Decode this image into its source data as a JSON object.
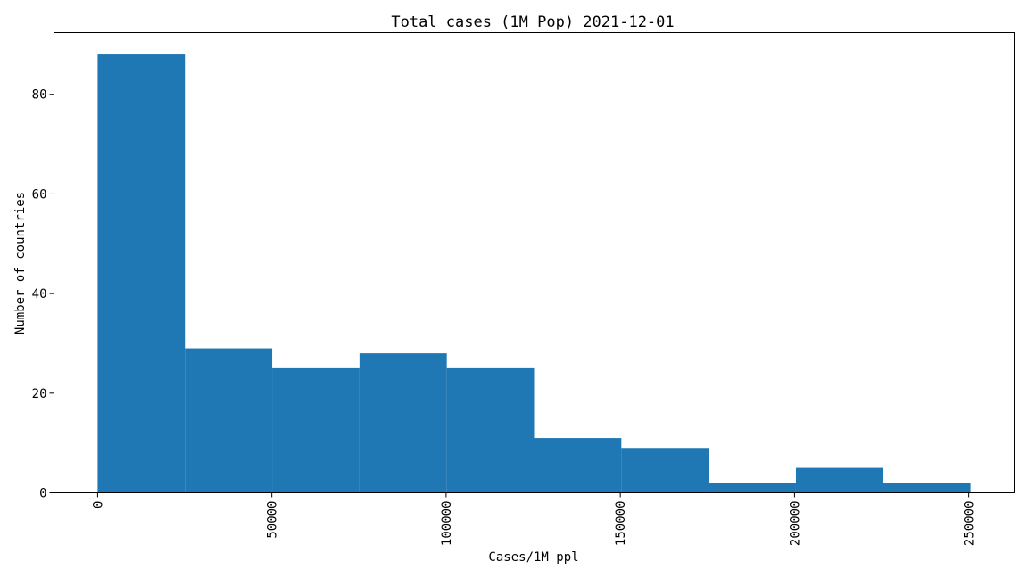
{
  "chart_data": {
    "type": "bar",
    "title": "Total cases (1M Pop) 2021-12-01",
    "xlabel": "Cases/1M ppl",
    "ylabel": "Number of countries",
    "bins": [
      {
        "start": 0,
        "end": 25050,
        "count": 88
      },
      {
        "start": 25050,
        "end": 50100,
        "count": 29
      },
      {
        "start": 50100,
        "end": 75150,
        "count": 25
      },
      {
        "start": 75150,
        "end": 100200,
        "count": 28
      },
      {
        "start": 100200,
        "end": 125250,
        "count": 25
      },
      {
        "start": 125250,
        "end": 150300,
        "count": 11
      },
      {
        "start": 150300,
        "end": 175350,
        "count": 9
      },
      {
        "start": 175350,
        "end": 200400,
        "count": 2
      },
      {
        "start": 200400,
        "end": 225450,
        "count": 5
      },
      {
        "start": 225450,
        "end": 250500,
        "count": 2
      }
    ],
    "xlim": [
      -12525,
      263025
    ],
    "ylim": [
      0,
      92.4
    ],
    "xticks": [
      0,
      50000,
      100000,
      150000,
      200000,
      250000
    ],
    "yticks": [
      0,
      20,
      40,
      60,
      80
    ],
    "bar_color": "#1f77b4",
    "grid": false
  }
}
